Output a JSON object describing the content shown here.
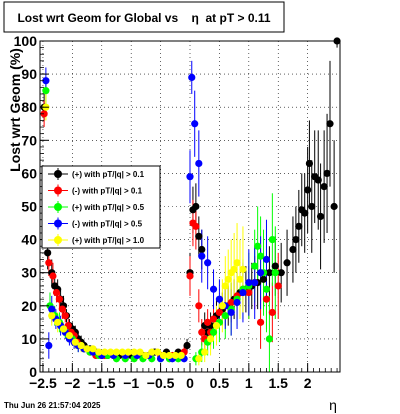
{
  "chart_data": {
    "type": "scatter",
    "title": "Lost wrt Geom for Global vs    η  at pT > 0.11",
    "xlabel": "η",
    "ylabel": "Lost wrt Geom (%)",
    "xlim": [
      -2.55,
      2.55
    ],
    "ylim": [
      0,
      100
    ],
    "xticks": [
      {
        "value": -2.5,
        "label": "−2.5"
      },
      {
        "value": -2,
        "label": "−2"
      },
      {
        "value": -1.5,
        "label": "−1.5"
      },
      {
        "value": -1,
        "label": "−1"
      },
      {
        "value": -0.5,
        "label": "−0.5"
      },
      {
        "value": 0,
        "label": "0"
      },
      {
        "value": 0.5,
        "label": "0.5"
      },
      {
        "value": 1,
        "label": "1"
      },
      {
        "value": 1.5,
        "label": "1.5"
      },
      {
        "value": 2,
        "label": "2"
      }
    ],
    "yticks": [
      {
        "value": 0,
        "label": "0"
      },
      {
        "value": 10,
        "label": "10"
      },
      {
        "value": 20,
        "label": "20"
      },
      {
        "value": 30,
        "label": "30"
      },
      {
        "value": 40,
        "label": "40"
      },
      {
        "value": 50,
        "label": "50"
      },
      {
        "value": 60,
        "label": "60"
      },
      {
        "value": 70,
        "label": "70"
      },
      {
        "value": 80,
        "label": "80"
      },
      {
        "value": 90,
        "label": "90"
      },
      {
        "value": 100,
        "label": "100"
      }
    ],
    "grid": true,
    "legend_position": "middle-left",
    "series": [
      {
        "name": "(+) with pT/|q| > 0.1",
        "color": "#000000",
        "points": [
          [
            -2.48,
            80,
            4
          ],
          [
            -2.42,
            36,
            5
          ],
          [
            -2.35,
            30,
            4
          ],
          [
            -2.3,
            26,
            3
          ],
          [
            -2.25,
            25,
            3
          ],
          [
            -2.2,
            22,
            3
          ],
          [
            -2.15,
            20,
            3
          ],
          [
            -2.1,
            17,
            2
          ],
          [
            -2.05,
            14,
            2
          ],
          [
            -2.0,
            13,
            2
          ],
          [
            -1.95,
            12,
            2
          ],
          [
            -1.9,
            10,
            2
          ],
          [
            -1.85,
            9,
            2
          ],
          [
            -1.8,
            8,
            1
          ],
          [
            -1.7,
            7,
            1
          ],
          [
            -1.6,
            6,
            1
          ],
          [
            -1.5,
            5,
            1
          ],
          [
            -1.4,
            5,
            1
          ],
          [
            -1.2,
            5,
            1
          ],
          [
            -1.0,
            5,
            1
          ],
          [
            -0.8,
            5,
            1
          ],
          [
            -0.6,
            6,
            1
          ],
          [
            -0.4,
            6,
            1
          ],
          [
            -0.2,
            6,
            1
          ],
          [
            -0.05,
            8,
            2
          ],
          [
            0.0,
            30,
            6
          ],
          [
            0.05,
            49,
            7
          ],
          [
            0.1,
            50,
            7
          ],
          [
            0.15,
            41,
            6
          ],
          [
            0.2,
            37,
            6
          ],
          [
            0.25,
            14,
            4
          ],
          [
            0.3,
            12,
            4
          ],
          [
            0.35,
            14,
            4
          ],
          [
            0.45,
            17,
            5
          ],
          [
            0.55,
            19,
            5
          ],
          [
            0.65,
            20,
            6
          ],
          [
            0.75,
            22,
            6
          ],
          [
            0.85,
            24,
            7
          ],
          [
            0.95,
            25,
            7
          ],
          [
            1.05,
            26,
            7
          ],
          [
            1.15,
            27,
            8
          ],
          [
            1.25,
            28,
            8
          ],
          [
            1.35,
            30,
            8
          ],
          [
            1.45,
            32,
            9
          ],
          [
            1.55,
            30,
            9
          ],
          [
            1.65,
            33,
            10
          ],
          [
            1.75,
            37,
            10
          ],
          [
            1.8,
            40,
            10
          ],
          [
            1.85,
            44,
            11
          ],
          [
            1.9,
            49,
            11
          ],
          [
            1.95,
            48,
            12
          ],
          [
            2.0,
            55,
            13
          ],
          [
            2.03,
            63,
            13
          ],
          [
            2.07,
            50,
            14
          ],
          [
            2.12,
            59,
            14
          ],
          [
            2.18,
            58,
            15
          ],
          [
            2.22,
            47,
            16
          ],
          [
            2.28,
            56,
            17
          ],
          [
            2.33,
            60,
            18
          ],
          [
            2.38,
            75,
            19
          ],
          [
            2.45,
            50,
            20
          ],
          [
            2.5,
            100,
            2
          ]
        ]
      },
      {
        "name": "(-) with pT/|q| > 0.1",
        "color": "#ff0000",
        "points": [
          [
            -2.48,
            78,
            4
          ],
          [
            -2.4,
            33,
            4
          ],
          [
            -2.33,
            29,
            4
          ],
          [
            -2.27,
            24,
            3
          ],
          [
            -2.22,
            22,
            3
          ],
          [
            -2.17,
            19,
            3
          ],
          [
            -2.12,
            17,
            2
          ],
          [
            -2.07,
            14,
            2
          ],
          [
            -2.02,
            12,
            2
          ],
          [
            -1.97,
            11,
            2
          ],
          [
            -1.92,
            9,
            2
          ],
          [
            -1.87,
            8,
            1
          ],
          [
            -1.8,
            7,
            1
          ],
          [
            -1.7,
            6,
            1
          ],
          [
            -1.6,
            5,
            1
          ],
          [
            -1.45,
            5,
            1
          ],
          [
            -1.3,
            5,
            1
          ],
          [
            -1.1,
            5,
            1
          ],
          [
            -0.9,
            5,
            1
          ],
          [
            -0.7,
            5,
            1
          ],
          [
            -0.5,
            5,
            1
          ],
          [
            -0.3,
            5,
            1
          ],
          [
            -0.1,
            6,
            2
          ],
          [
            0.0,
            29,
            6
          ],
          [
            0.05,
            45,
            7
          ],
          [
            0.1,
            44,
            7
          ],
          [
            0.15,
            20,
            5
          ],
          [
            0.2,
            12,
            4
          ],
          [
            0.25,
            10,
            4
          ],
          [
            0.3,
            15,
            4
          ],
          [
            0.35,
            12,
            4
          ],
          [
            0.4,
            16,
            5
          ],
          [
            0.5,
            18,
            5
          ],
          [
            0.6,
            20,
            6
          ],
          [
            0.7,
            21,
            6
          ],
          [
            0.8,
            23,
            7
          ],
          [
            0.9,
            25,
            7
          ],
          [
            1.0,
            24,
            8
          ],
          [
            1.1,
            27,
            8
          ],
          [
            1.2,
            15,
            8
          ],
          [
            1.3,
            22,
            9
          ],
          [
            1.4,
            18,
            9
          ],
          [
            1.5,
            26,
            10
          ]
        ]
      },
      {
        "name": "(+) with pT/|q| > 0.5",
        "color": "#00ff00",
        "points": [
          [
            -2.45,
            85,
            4
          ],
          [
            -2.38,
            20,
            4
          ],
          [
            -2.3,
            17,
            3
          ],
          [
            -2.22,
            15,
            3
          ],
          [
            -2.15,
            13,
            2
          ],
          [
            -2.07,
            11,
            2
          ],
          [
            -2.0,
            10,
            2
          ],
          [
            -1.9,
            8,
            2
          ],
          [
            -1.8,
            7,
            1
          ],
          [
            -1.7,
            6,
            1
          ],
          [
            -1.55,
            5,
            1
          ],
          [
            -1.4,
            5,
            1
          ],
          [
            -1.25,
            4,
            1
          ],
          [
            -1.1,
            4,
            1
          ],
          [
            -0.95,
            4,
            1
          ],
          [
            -0.8,
            4,
            1
          ],
          [
            -0.65,
            4,
            1
          ],
          [
            -0.5,
            4,
            1
          ],
          [
            -0.35,
            4,
            1
          ],
          [
            -0.2,
            4,
            1
          ],
          [
            0.1,
            4,
            2
          ],
          [
            0.2,
            6,
            3
          ],
          [
            0.3,
            9,
            4
          ],
          [
            0.4,
            12,
            5
          ],
          [
            0.5,
            15,
            6
          ],
          [
            0.6,
            17,
            7
          ],
          [
            0.7,
            19,
            8
          ],
          [
            0.8,
            22,
            8
          ],
          [
            0.9,
            25,
            9
          ],
          [
            1.0,
            26,
            10
          ],
          [
            1.1,
            32,
            11
          ],
          [
            1.15,
            38,
            12
          ],
          [
            1.2,
            35,
            12
          ],
          [
            1.25,
            30,
            13
          ],
          [
            1.3,
            25,
            13
          ],
          [
            1.35,
            10,
            13
          ],
          [
            1.4,
            40,
            14
          ],
          [
            1.45,
            30,
            14
          ]
        ]
      },
      {
        "name": "(-) with pT/|q| > 0.5",
        "color": "#0000ff",
        "points": [
          [
            -2.45,
            88,
            4
          ],
          [
            -2.4,
            8,
            4
          ],
          [
            -2.35,
            19,
            4
          ],
          [
            -2.28,
            16,
            3
          ],
          [
            -2.2,
            14,
            3
          ],
          [
            -2.12,
            12,
            2
          ],
          [
            -2.05,
            10,
            2
          ],
          [
            -1.97,
            9,
            2
          ],
          [
            -1.9,
            8,
            2
          ],
          [
            -1.8,
            7,
            1
          ],
          [
            -1.65,
            6,
            1
          ],
          [
            -1.5,
            5,
            1
          ],
          [
            -1.3,
            5,
            1
          ],
          [
            -1.1,
            5,
            1
          ],
          [
            -0.9,
            5,
            1
          ],
          [
            -0.7,
            5,
            1
          ],
          [
            -0.5,
            4,
            1
          ],
          [
            -0.3,
            4,
            1
          ],
          [
            -0.1,
            4,
            1
          ],
          [
            0.0,
            59,
            8
          ],
          [
            0.03,
            89,
            5
          ],
          [
            0.08,
            75,
            10
          ],
          [
            0.15,
            63,
            10
          ],
          [
            0.2,
            35,
            8
          ],
          [
            0.3,
            33,
            8
          ],
          [
            0.4,
            25,
            6
          ],
          [
            0.5,
            22,
            6
          ],
          [
            0.6,
            20,
            7
          ],
          [
            0.7,
            18,
            7
          ],
          [
            0.8,
            21,
            8
          ],
          [
            0.9,
            24,
            9
          ],
          [
            1.0,
            27,
            10
          ],
          [
            1.1,
            27,
            11
          ],
          [
            1.2,
            30,
            11
          ],
          [
            1.3,
            34,
            12
          ]
        ]
      },
      {
        "name": "(+) with pT/|q| > 1.0",
        "color": "#ffff00",
        "points": [
          [
            -2.45,
            80,
            4
          ],
          [
            -2.35,
            17,
            3
          ],
          [
            -2.25,
            15,
            3
          ],
          [
            -2.15,
            13,
            2
          ],
          [
            -2.05,
            11,
            2
          ],
          [
            -1.95,
            9,
            2
          ],
          [
            -1.85,
            8,
            2
          ],
          [
            -1.75,
            7,
            1
          ],
          [
            -1.65,
            7,
            1
          ],
          [
            -1.55,
            6,
            1
          ],
          [
            -1.45,
            6,
            1
          ],
          [
            -1.35,
            6,
            1
          ],
          [
            -1.25,
            6,
            1
          ],
          [
            -1.15,
            6,
            1
          ],
          [
            -1.05,
            6,
            1
          ],
          [
            -0.95,
            6,
            1
          ],
          [
            -0.85,
            6,
            1
          ],
          [
            -0.75,
            5,
            1
          ],
          [
            -0.65,
            6,
            1
          ],
          [
            -0.55,
            6,
            1
          ],
          [
            -0.45,
            5,
            1
          ],
          [
            -0.35,
            5,
            1
          ],
          [
            -0.25,
            5,
            1
          ],
          [
            -0.15,
            5,
            1
          ],
          [
            0.15,
            4,
            2
          ],
          [
            0.25,
            6,
            3
          ],
          [
            0.35,
            10,
            5
          ],
          [
            0.45,
            14,
            6
          ],
          [
            0.55,
            20,
            8
          ],
          [
            0.6,
            26,
            9
          ],
          [
            0.65,
            28,
            9
          ],
          [
            0.7,
            30,
            10
          ],
          [
            0.75,
            31,
            11
          ],
          [
            0.8,
            33,
            12
          ],
          [
            0.85,
            28,
            12
          ],
          [
            0.9,
            31,
            13
          ]
        ]
      }
    ]
  },
  "footer": {
    "timestamp": "Thu Jun 26 21:57:04 2025"
  }
}
